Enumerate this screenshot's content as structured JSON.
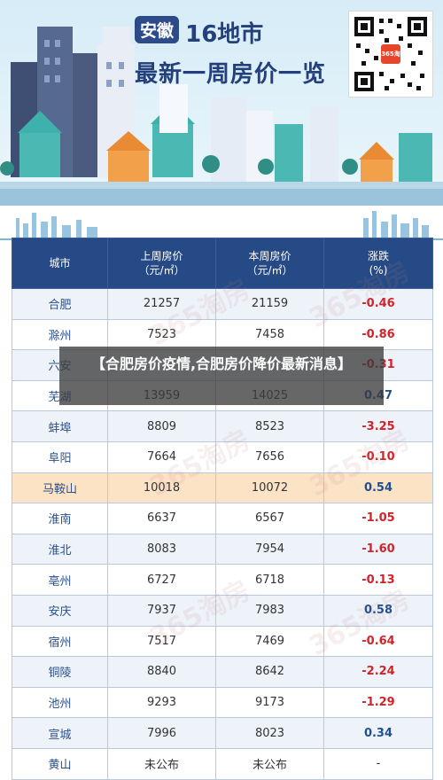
{
  "banner": {
    "province_tag": "安徽",
    "title_line1": "16地市",
    "title_line2": "最新一周房价一览",
    "qr_logo_text": "365淘房",
    "colors": {
      "navy": "#23407c",
      "accent_orange": "#f2a04a",
      "teal": "#4bb8b4"
    }
  },
  "table": {
    "headers": {
      "city": "城市",
      "last_week_line1": "上周房价",
      "last_week_line2": "（元/㎡）",
      "this_week_line1": "本周房价",
      "this_week_line2": "（元/㎡）",
      "change_line1": "涨跌",
      "change_line2": "(%)"
    },
    "rows": [
      {
        "city": "合肥",
        "last": "21257",
        "this": "21159",
        "change": "-0.46"
      },
      {
        "city": "滁州",
        "last": "7523",
        "this": "7458",
        "change": "-0.86"
      },
      {
        "city": "六安",
        "last": "",
        "this": "",
        "change": "-0.31"
      },
      {
        "city": "芜湖",
        "last": "13959",
        "this": "14025",
        "change": "0.47"
      },
      {
        "city": "蚌埠",
        "last": "8809",
        "this": "8523",
        "change": "-3.25"
      },
      {
        "city": "阜阳",
        "last": "7664",
        "this": "7656",
        "change": "-0.10"
      },
      {
        "city": "马鞍山",
        "last": "10018",
        "this": "10072",
        "change": "0.54"
      },
      {
        "city": "淮南",
        "last": "6637",
        "this": "6567",
        "change": "-1.05"
      },
      {
        "city": "淮北",
        "last": "8083",
        "this": "7954",
        "change": "-1.60"
      },
      {
        "city": "亳州",
        "last": "6727",
        "this": "6718",
        "change": "-0.13"
      },
      {
        "city": "安庆",
        "last": "7937",
        "this": "7983",
        "change": "0.58"
      },
      {
        "city": "宿州",
        "last": "7517",
        "this": "7469",
        "change": "-0.64"
      },
      {
        "city": "铜陵",
        "last": "8840",
        "this": "8642",
        "change": "-2.24"
      },
      {
        "city": "池州",
        "last": "9293",
        "this": "9173",
        "change": "-1.29"
      },
      {
        "city": "宣城",
        "last": "7996",
        "this": "8023",
        "change": "0.34"
      },
      {
        "city": "黄山",
        "last": "未公布",
        "this": "未公布",
        "change": "-"
      }
    ]
  },
  "watermark": "365淘房",
  "caption": "【合肥房价疫情,合肥房价降价最新消息】"
}
